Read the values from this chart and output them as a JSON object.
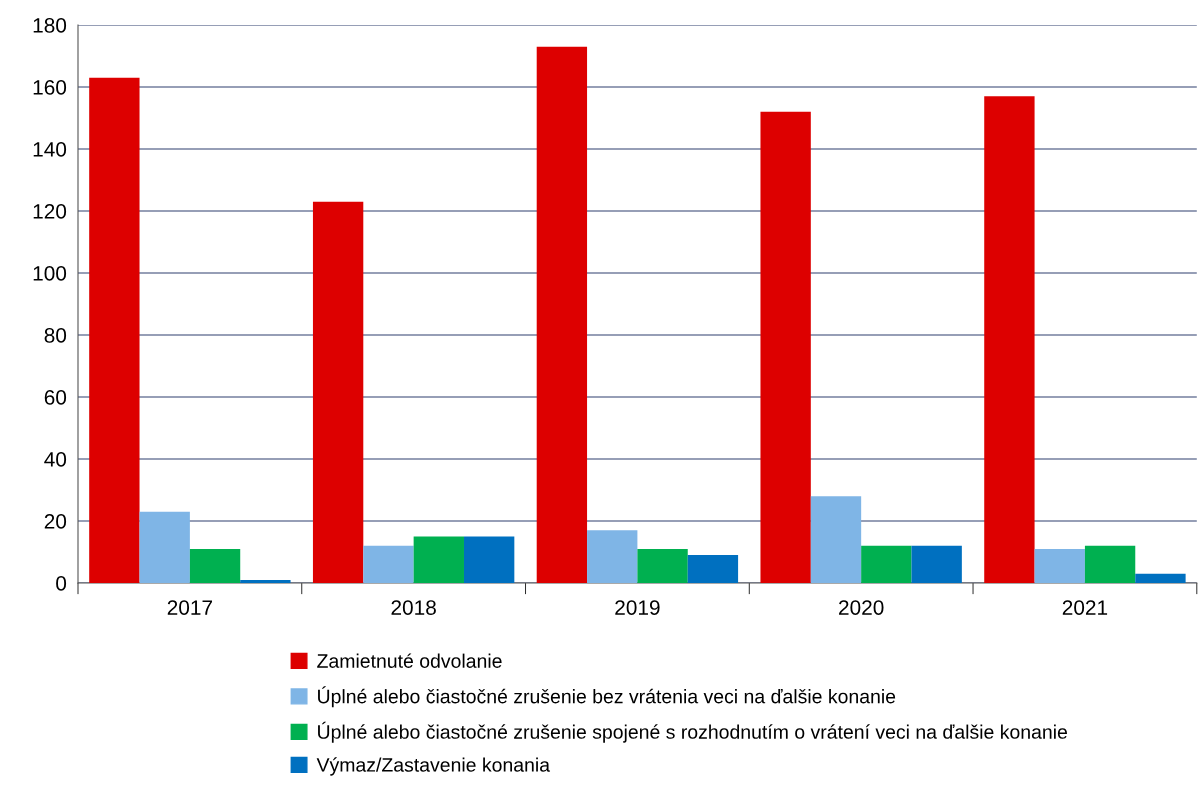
{
  "chart_data": {
    "type": "bar",
    "categories": [
      "2017",
      "2018",
      "2019",
      "2020",
      "2021"
    ],
    "series": [
      {
        "name": "Zamietnuté odvolanie",
        "color": "#dd0000",
        "values": [
          163,
          123,
          173,
          152,
          157
        ]
      },
      {
        "name": "Úplné alebo čiastočné zrušenie bez vrátenia veci na ďalšie konanie",
        "color": "#7fb5e6",
        "values": [
          23,
          12,
          17,
          28,
          11
        ]
      },
      {
        "name": "Úplné alebo čiastočné zrušenie spojené s rozhodnutím o vrátení veci na ďalšie konanie",
        "color": "#00b050",
        "values": [
          11,
          15,
          11,
          12,
          12
        ]
      },
      {
        "name": "Výmaz/Zastavenie konania",
        "color": "#0070c0",
        "values": [
          1,
          15,
          9,
          12,
          3
        ]
      }
    ],
    "ylim": [
      0,
      180
    ],
    "yticks": [
      0,
      20,
      40,
      60,
      80,
      100,
      120,
      140,
      160,
      180
    ],
    "grid": "y",
    "legend": "bottom"
  }
}
